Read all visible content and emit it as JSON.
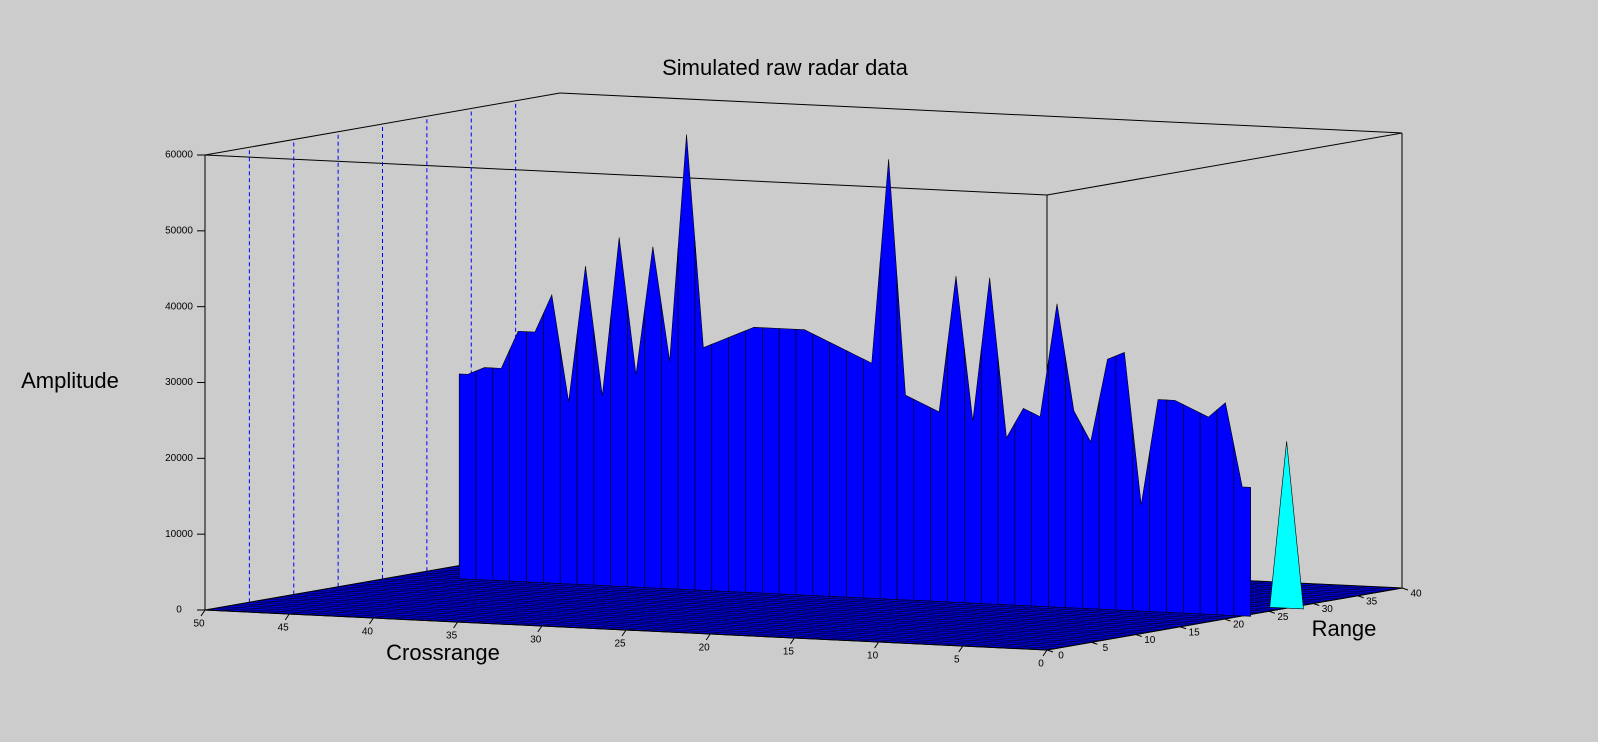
{
  "chart_data": {
    "type": "surface",
    "title": "Simulated raw radar data",
    "xlabel": "Crossrange",
    "ylabel": "Range",
    "zlabel": "Amplitude",
    "xlim": [
      0,
      50
    ],
    "xticks": [
      0,
      5,
      10,
      15,
      20,
      25,
      30,
      35,
      40,
      45,
      50
    ],
    "ylim": [
      0,
      40
    ],
    "yticks": [
      0,
      5,
      10,
      15,
      20,
      25,
      30,
      35,
      40
    ],
    "zlim": [
      0,
      60000
    ],
    "zticks": [
      0,
      10000,
      20000,
      30000,
      40000,
      50000,
      60000
    ],
    "range": 22,
    "color": "#0000ff",
    "x": [
      0,
      1,
      2,
      3,
      4,
      5,
      6,
      7,
      8,
      9,
      10,
      11,
      12,
      13,
      14,
      15,
      16,
      17,
      18,
      19,
      20,
      21,
      22,
      23,
      24,
      25,
      26,
      27,
      28,
      29,
      30,
      31,
      32,
      33,
      34,
      35,
      36,
      37,
      38,
      39,
      40,
      41,
      42,
      43,
      44,
      45,
      46
    ],
    "values": [
      17000,
      28000,
      26000,
      27000,
      28000,
      28000,
      14000,
      34000,
      33000,
      22000,
      26000,
      40000,
      25000,
      26000,
      22000,
      43000,
      24000,
      43000,
      25000,
      26000,
      27000,
      58000,
      31000,
      32000,
      33000,
      34000,
      35000,
      35000,
      35000,
      35000,
      34000,
      33000,
      32000,
      60000,
      30000,
      45000,
      28000,
      46000,
      25000,
      42000,
      24000,
      38000,
      33000,
      33000,
      28000,
      28000,
      27000
    ],
    "highlight": {
      "x": 0,
      "y": 27,
      "value": 22000,
      "color": "#00ffff"
    }
  }
}
